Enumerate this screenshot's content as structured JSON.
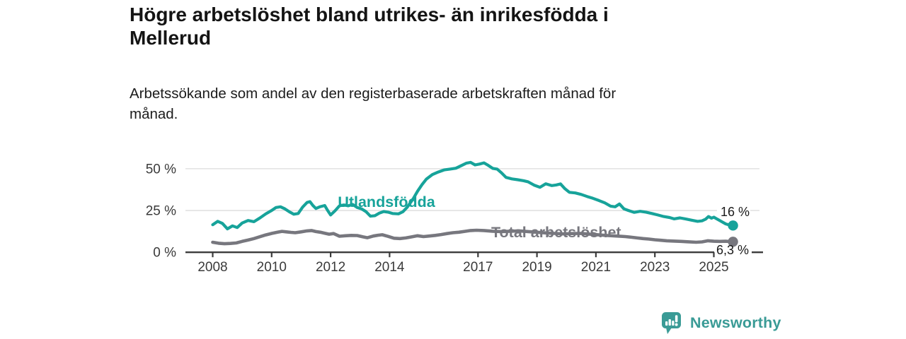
{
  "header": {
    "title": "Högre arbetslöshet bland utrikes- än inrikesfödda i\nMellerud",
    "subtitle": "Arbetssökande som andel av den registerbaserade arbetskraften månad för\nmånad."
  },
  "footer": {
    "brand": "Newsworthy",
    "brand_color": "#3a9b96"
  },
  "chart_data": {
    "type": "line",
    "title": "Högre arbetslöshet bland utrikes- än inrikesfödda i Mellerud",
    "xlabel": "",
    "ylabel": "",
    "grid": "horizontal",
    "legend_position": "inline-labels",
    "xlim": [
      2007.1,
      2026.2
    ],
    "ylim": [
      0,
      55
    ],
    "x_ticks": [
      {
        "label": "2008",
        "year": 2008
      },
      {
        "label": "2010",
        "year": 2010
      },
      {
        "label": "2012",
        "year": 2012
      },
      {
        "label": "2014",
        "year": 2014
      },
      {
        "label": "2017",
        "year": 2017
      },
      {
        "label": "2019",
        "year": 2019
      },
      {
        "label": "2021",
        "year": 2021
      },
      {
        "label": "2023",
        "year": 2023
      },
      {
        "label": "2025",
        "year": 2025
      }
    ],
    "y_ticks": [
      {
        "label": "0 %",
        "value": 0
      },
      {
        "label": "25 %",
        "value": 25
      },
      {
        "label": "50 %",
        "value": 50
      }
    ],
    "axis_color": "#3c3c3c",
    "gridline_color": "#dcdcdc",
    "tick_label_color": "#3a3a3a",
    "end_label_color": "#1a1a1a",
    "series": [
      {
        "name": "Utlandsfödda",
        "color": "#17a39a",
        "end_label": "16 %",
        "points": [
          [
            2008.0,
            16.5
          ],
          [
            2008.17,
            18.5
          ],
          [
            2008.33,
            17.3
          ],
          [
            2008.5,
            14.0
          ],
          [
            2008.67,
            15.8
          ],
          [
            2008.83,
            14.8
          ],
          [
            2009.0,
            17.5
          ],
          [
            2009.2,
            19.0
          ],
          [
            2009.4,
            18.3
          ],
          [
            2009.6,
            20.5
          ],
          [
            2009.8,
            23.0
          ],
          [
            2010.0,
            25.0
          ],
          [
            2010.15,
            26.8
          ],
          [
            2010.3,
            27.2
          ],
          [
            2010.45,
            26.0
          ],
          [
            2010.6,
            24.2
          ],
          [
            2010.75,
            22.8
          ],
          [
            2010.9,
            23.2
          ],
          [
            2011.05,
            27.0
          ],
          [
            2011.2,
            29.8
          ],
          [
            2011.3,
            30.3
          ],
          [
            2011.4,
            28.0
          ],
          [
            2011.5,
            26.2
          ],
          [
            2011.65,
            27.3
          ],
          [
            2011.8,
            28.0
          ],
          [
            2011.9,
            25.0
          ],
          [
            2012.0,
            22.3
          ],
          [
            2012.15,
            24.8
          ],
          [
            2012.3,
            27.8
          ],
          [
            2012.45,
            28.3
          ],
          [
            2012.6,
            27.8
          ],
          [
            2012.75,
            28.6
          ],
          [
            2012.9,
            26.8
          ],
          [
            2013.05,
            26.0
          ],
          [
            2013.2,
            24.3
          ],
          [
            2013.35,
            21.6
          ],
          [
            2013.5,
            21.9
          ],
          [
            2013.65,
            23.4
          ],
          [
            2013.8,
            24.4
          ],
          [
            2013.95,
            24.0
          ],
          [
            2014.1,
            23.2
          ],
          [
            2014.3,
            23.0
          ],
          [
            2014.45,
            24.2
          ],
          [
            2014.6,
            27.0
          ],
          [
            2014.8,
            32.0
          ],
          [
            2014.95,
            36.5
          ],
          [
            2015.1,
            40.5
          ],
          [
            2015.25,
            43.8
          ],
          [
            2015.45,
            46.5
          ],
          [
            2015.65,
            48.0
          ],
          [
            2015.85,
            49.3
          ],
          [
            2016.05,
            49.8
          ],
          [
            2016.25,
            50.3
          ],
          [
            2016.45,
            52.0
          ],
          [
            2016.6,
            53.3
          ],
          [
            2016.75,
            53.8
          ],
          [
            2016.9,
            52.3
          ],
          [
            2017.05,
            52.8
          ],
          [
            2017.2,
            53.5
          ],
          [
            2017.35,
            52.0
          ],
          [
            2017.5,
            50.2
          ],
          [
            2017.65,
            49.8
          ],
          [
            2017.8,
            47.5
          ],
          [
            2017.95,
            44.8
          ],
          [
            2018.15,
            43.9
          ],
          [
            2018.35,
            43.4
          ],
          [
            2018.55,
            42.8
          ],
          [
            2018.7,
            42.2
          ],
          [
            2018.9,
            40.2
          ],
          [
            2019.1,
            38.9
          ],
          [
            2019.3,
            41.0
          ],
          [
            2019.5,
            39.9
          ],
          [
            2019.65,
            40.3
          ],
          [
            2019.8,
            40.9
          ],
          [
            2019.95,
            38.0
          ],
          [
            2020.1,
            35.9
          ],
          [
            2020.3,
            35.5
          ],
          [
            2020.5,
            34.6
          ],
          [
            2020.7,
            33.4
          ],
          [
            2020.9,
            32.3
          ],
          [
            2021.1,
            31.0
          ],
          [
            2021.3,
            29.6
          ],
          [
            2021.5,
            27.6
          ],
          [
            2021.65,
            27.2
          ],
          [
            2021.8,
            28.9
          ],
          [
            2021.95,
            26.0
          ],
          [
            2022.1,
            25.0
          ],
          [
            2022.3,
            23.9
          ],
          [
            2022.5,
            24.5
          ],
          [
            2022.7,
            24.0
          ],
          [
            2022.9,
            23.2
          ],
          [
            2023.1,
            22.3
          ],
          [
            2023.3,
            21.4
          ],
          [
            2023.5,
            20.8
          ],
          [
            2023.65,
            20.0
          ],
          [
            2023.85,
            20.6
          ],
          [
            2024.05,
            19.9
          ],
          [
            2024.25,
            19.2
          ],
          [
            2024.45,
            18.5
          ],
          [
            2024.6,
            18.8
          ],
          [
            2024.72,
            19.8
          ],
          [
            2024.82,
            21.4
          ],
          [
            2024.92,
            20.4
          ],
          [
            2025.0,
            21.0
          ],
          [
            2025.1,
            20.0
          ],
          [
            2025.25,
            18.5
          ],
          [
            2025.4,
            17.0
          ],
          [
            2025.55,
            16.2
          ],
          [
            2025.65,
            16.0
          ]
        ]
      },
      {
        "name": "Total arbetslöshet",
        "color": "#77777e",
        "end_label": "6,3 %",
        "points": [
          [
            2008.0,
            6.0
          ],
          [
            2008.2,
            5.4
          ],
          [
            2008.4,
            5.1
          ],
          [
            2008.6,
            5.3
          ],
          [
            2008.8,
            5.6
          ],
          [
            2009.0,
            6.5
          ],
          [
            2009.2,
            7.3
          ],
          [
            2009.4,
            8.2
          ],
          [
            2009.6,
            9.3
          ],
          [
            2009.8,
            10.4
          ],
          [
            2010.0,
            11.3
          ],
          [
            2010.2,
            12.0
          ],
          [
            2010.35,
            12.5
          ],
          [
            2010.5,
            12.2
          ],
          [
            2010.65,
            11.9
          ],
          [
            2010.8,
            11.7
          ],
          [
            2011.0,
            12.2
          ],
          [
            2011.2,
            12.8
          ],
          [
            2011.35,
            13.0
          ],
          [
            2011.5,
            12.4
          ],
          [
            2011.65,
            12.0
          ],
          [
            2011.8,
            11.4
          ],
          [
            2011.95,
            10.8
          ],
          [
            2012.1,
            11.2
          ],
          [
            2012.3,
            9.6
          ],
          [
            2012.5,
            9.9
          ],
          [
            2012.7,
            10.1
          ],
          [
            2012.9,
            10.0
          ],
          [
            2013.1,
            9.2
          ],
          [
            2013.25,
            8.7
          ],
          [
            2013.45,
            9.7
          ],
          [
            2013.6,
            10.2
          ],
          [
            2013.75,
            10.5
          ],
          [
            2013.95,
            9.5
          ],
          [
            2014.15,
            8.4
          ],
          [
            2014.35,
            8.2
          ],
          [
            2014.55,
            8.6
          ],
          [
            2014.75,
            9.2
          ],
          [
            2014.95,
            9.9
          ],
          [
            2015.15,
            9.4
          ],
          [
            2015.35,
            9.7
          ],
          [
            2015.55,
            10.1
          ],
          [
            2015.75,
            10.6
          ],
          [
            2015.95,
            11.2
          ],
          [
            2016.15,
            11.7
          ],
          [
            2016.35,
            12.0
          ],
          [
            2016.55,
            12.5
          ],
          [
            2016.75,
            13.0
          ],
          [
            2016.95,
            13.2
          ],
          [
            2017.2,
            13.0
          ],
          [
            2017.5,
            12.6
          ],
          [
            2017.8,
            12.4
          ],
          [
            2018.1,
            12.6
          ],
          [
            2018.4,
            12.8
          ],
          [
            2018.7,
            12.4
          ],
          [
            2019.0,
            12.0
          ],
          [
            2019.3,
            11.6
          ],
          [
            2019.6,
            11.3
          ],
          [
            2019.9,
            11.0
          ],
          [
            2020.2,
            11.2
          ],
          [
            2020.5,
            11.3
          ],
          [
            2020.8,
            10.8
          ],
          [
            2021.1,
            10.4
          ],
          [
            2021.4,
            10.0
          ],
          [
            2021.7,
            9.7
          ],
          [
            2022.0,
            9.4
          ],
          [
            2022.2,
            9.0
          ],
          [
            2022.4,
            8.6
          ],
          [
            2022.6,
            8.2
          ],
          [
            2022.8,
            7.9
          ],
          [
            2023.0,
            7.5
          ],
          [
            2023.2,
            7.2
          ],
          [
            2023.4,
            6.9
          ],
          [
            2023.6,
            6.7
          ],
          [
            2023.9,
            6.5
          ],
          [
            2024.1,
            6.3
          ],
          [
            2024.4,
            6.0
          ],
          [
            2024.6,
            6.2
          ],
          [
            2024.8,
            6.9
          ],
          [
            2025.0,
            6.6
          ],
          [
            2025.2,
            6.5
          ],
          [
            2025.4,
            6.6
          ],
          [
            2025.65,
            6.3
          ]
        ]
      }
    ]
  }
}
